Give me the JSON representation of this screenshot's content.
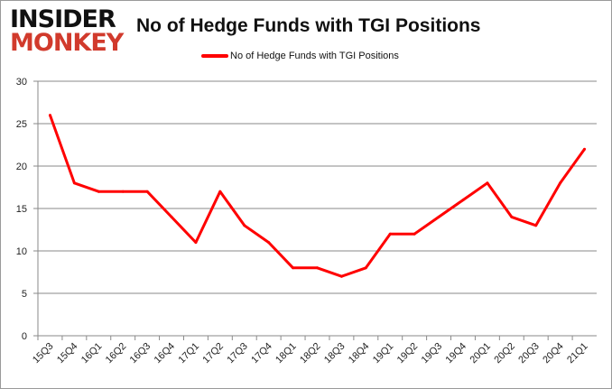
{
  "logo": {
    "line1": "INSIDER",
    "line2": "MONKEY"
  },
  "chart_data": {
    "type": "line",
    "title": "No of Hedge Funds with TGI Positions",
    "legend_position": "top",
    "grid": true,
    "ylim": [
      0,
      30
    ],
    "yticks": [
      0,
      5,
      10,
      15,
      20,
      25,
      30
    ],
    "categories": [
      "15Q3",
      "15Q4",
      "16Q1",
      "16Q2",
      "16Q3",
      "16Q4",
      "17Q1",
      "17Q2",
      "17Q3",
      "17Q4",
      "18Q1",
      "18Q2",
      "18Q3",
      "18Q4",
      "19Q1",
      "19Q2",
      "19Q3",
      "19Q4",
      "20Q1",
      "20Q2",
      "20Q3",
      "20Q4",
      "21Q1"
    ],
    "series": [
      {
        "name": "No of Hedge Funds with TGI Positions",
        "color": "#ff0000",
        "values": [
          26,
          18,
          17,
          17,
          17,
          14,
          11,
          17,
          13,
          11,
          8,
          8,
          7,
          8,
          12,
          12,
          14,
          16,
          18,
          14,
          13,
          18,
          22
        ]
      }
    ]
  }
}
